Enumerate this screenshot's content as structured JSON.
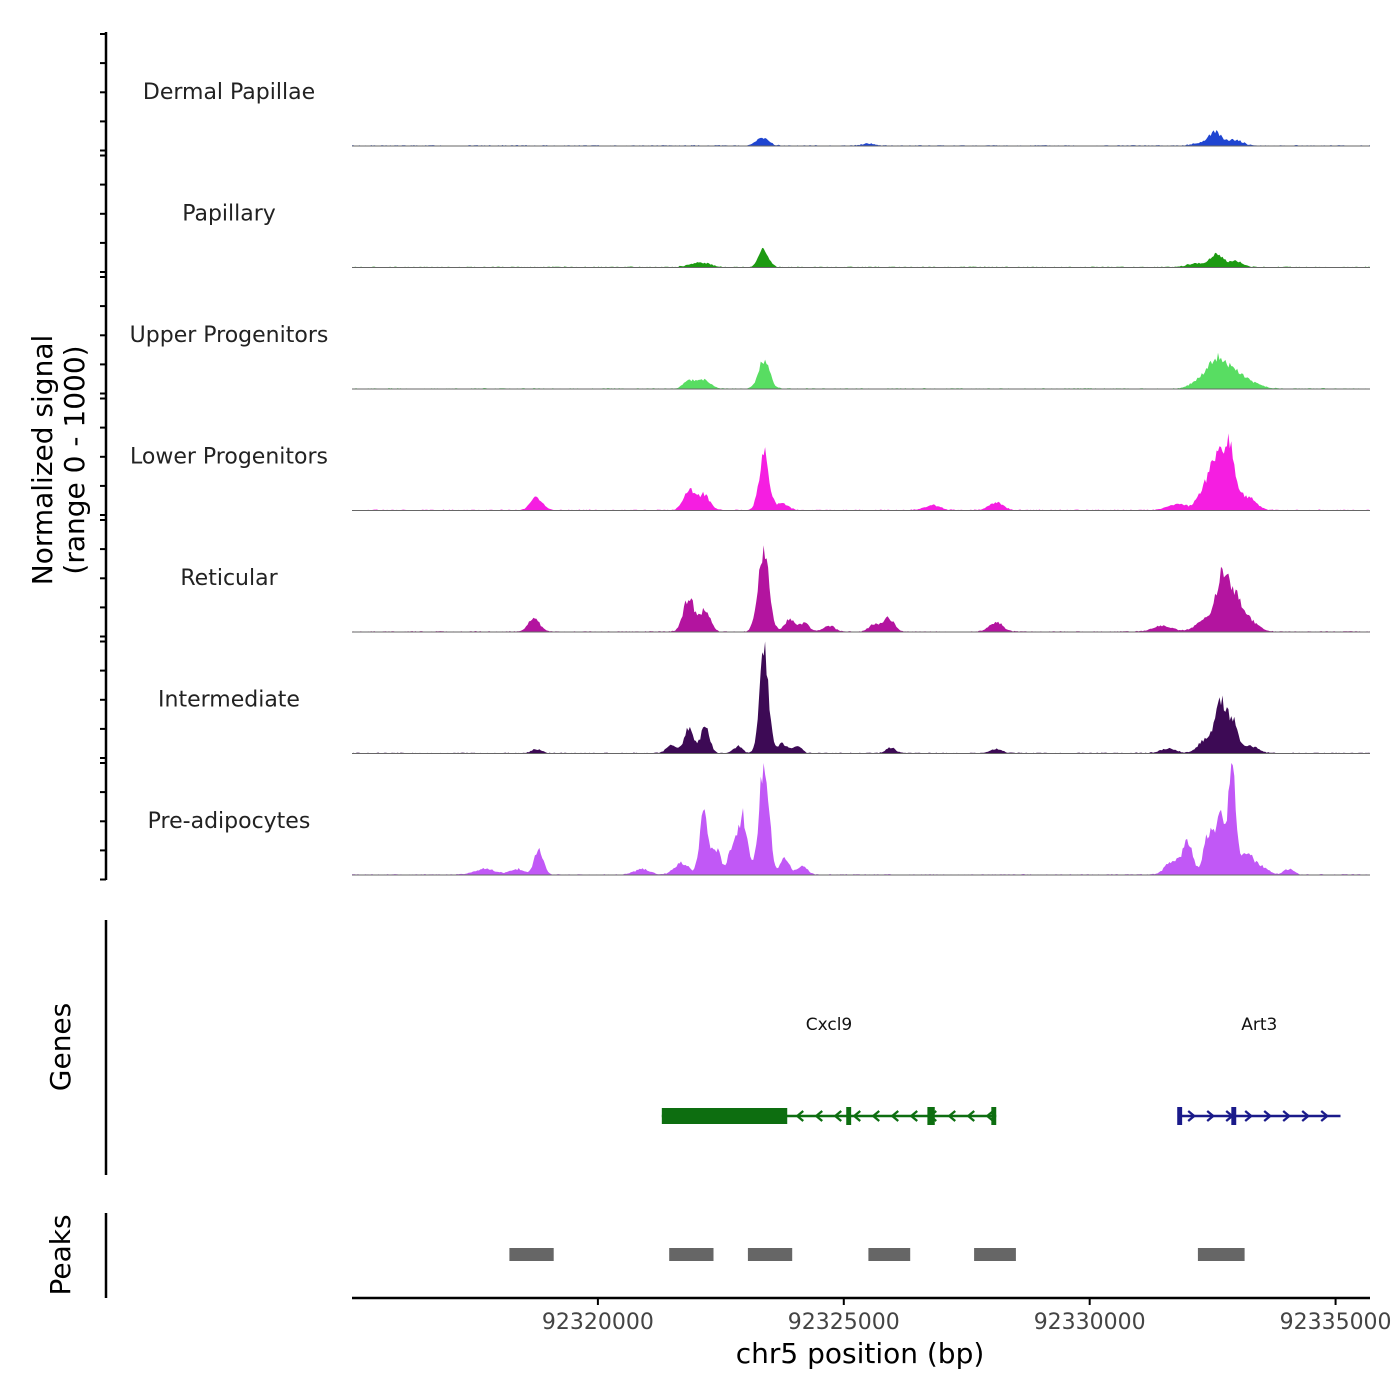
{
  "chart_data": {
    "type": "area",
    "title": "",
    "ylabel": [
      "Normalized signal",
      "(range 0 - 1000)"
    ],
    "xlabel": "chr5 position (bp)",
    "xlim": [
      92315000,
      92335700
    ],
    "ylim": [
      0,
      1000
    ],
    "x_ticks": [
      92320000,
      92325000,
      92330000,
      92335000
    ],
    "x_tick_labels": [
      "92320000",
      "92325000",
      "92330000",
      "92335000"
    ],
    "tracks": [
      {
        "name": "Dermal Papillae",
        "color": "#1f45d1",
        "peaks": [
          [
            92323350,
            70,
            120
          ],
          [
            92325500,
            18,
            120
          ],
          [
            92332550,
            120,
            120
          ],
          [
            92332950,
            55,
            150
          ],
          [
            92332250,
            25,
            150
          ]
        ]
      },
      {
        "name": "Papillary",
        "color": "#1d9a12",
        "peaks": [
          [
            92323370,
            160,
            100
          ],
          [
            92321950,
            28,
            150
          ],
          [
            92322200,
            25,
            150
          ],
          [
            92332580,
            110,
            120
          ],
          [
            92332950,
            55,
            150
          ],
          [
            92332200,
            35,
            200
          ]
        ]
      },
      {
        "name": "Upper Progenitors",
        "color": "#58dd62",
        "peaks": [
          [
            92323380,
            260,
            110
          ],
          [
            92321850,
            70,
            110
          ],
          [
            92322150,
            80,
            130
          ],
          [
            92332600,
            230,
            180
          ],
          [
            92332950,
            130,
            200
          ],
          [
            92332300,
            80,
            200
          ],
          [
            92333300,
            40,
            200
          ]
        ]
      },
      {
        "name": "Lower Progenitors",
        "color": "#f51ee1",
        "peaks": [
          [
            92323380,
            500,
            100
          ],
          [
            92318750,
            110,
            120
          ],
          [
            92321850,
            170,
            110
          ],
          [
            92322150,
            140,
            120
          ],
          [
            92323750,
            60,
            120
          ],
          [
            92326800,
            45,
            150
          ],
          [
            92328100,
            70,
            140
          ],
          [
            92332600,
            450,
            120
          ],
          [
            92332850,
            520,
            110
          ],
          [
            92332350,
            200,
            140
          ],
          [
            92333200,
            120,
            170
          ],
          [
            92331800,
            50,
            200
          ]
        ]
      },
      {
        "name": "Reticular",
        "color": "#b3149f",
        "peaks": [
          [
            92323370,
            700,
            110
          ],
          [
            92318700,
            110,
            120
          ],
          [
            92321850,
            300,
            110
          ],
          [
            92322180,
            200,
            100
          ],
          [
            92323900,
            110,
            100
          ],
          [
            92324200,
            80,
            100
          ],
          [
            92325900,
            120,
            120
          ],
          [
            92325600,
            60,
            100
          ],
          [
            92328100,
            80,
            140
          ],
          [
            92332700,
            500,
            140
          ],
          [
            92333000,
            260,
            140
          ],
          [
            92332300,
            100,
            160
          ],
          [
            92333300,
            80,
            150
          ],
          [
            92331500,
            50,
            200
          ],
          [
            92324700,
            50,
            120
          ]
        ]
      },
      {
        "name": "Intermediate",
        "color": "#3d0a55",
        "peaks": [
          [
            92323380,
            950,
            90
          ],
          [
            92321850,
            230,
            90
          ],
          [
            92322180,
            240,
            90
          ],
          [
            92322850,
            60,
            90
          ],
          [
            92323750,
            90,
            90
          ],
          [
            92324050,
            70,
            90
          ],
          [
            92321500,
            70,
            110
          ],
          [
            92325950,
            50,
            90
          ],
          [
            92328100,
            40,
            110
          ],
          [
            92332650,
            420,
            110
          ],
          [
            92332900,
            280,
            120
          ],
          [
            92332350,
            120,
            140
          ],
          [
            92333300,
            60,
            140
          ],
          [
            92331600,
            40,
            160
          ],
          [
            92318750,
            35,
            100
          ]
        ]
      },
      {
        "name": "Pre-adipocytes",
        "color": "#c158f6",
        "peaks": [
          [
            92323380,
            1000,
            100
          ],
          [
            92318800,
            230,
            90
          ],
          [
            92322150,
            560,
            80
          ],
          [
            92322400,
            230,
            100
          ],
          [
            92321700,
            100,
            150
          ],
          [
            92322950,
            500,
            90
          ],
          [
            92322750,
            270,
            90
          ],
          [
            92323800,
            150,
            90
          ],
          [
            92324150,
            80,
            100
          ],
          [
            92332900,
            900,
            80
          ],
          [
            92332650,
            580,
            100
          ],
          [
            92332400,
            340,
            90
          ],
          [
            92332000,
            280,
            100
          ],
          [
            92331700,
            130,
            150
          ],
          [
            92333200,
            200,
            100
          ],
          [
            92333450,
            80,
            150
          ],
          [
            92334050,
            50,
            100
          ],
          [
            92317700,
            50,
            200
          ],
          [
            92320900,
            50,
            150
          ],
          [
            92318350,
            50,
            150
          ]
        ]
      }
    ],
    "genes": [
      {
        "name": "Cxcl9",
        "strand": "-",
        "start": 92321300,
        "end": 92328100,
        "color": "#0d6e10",
        "thick": [
          [
            92321300,
            92323850
          ]
        ],
        "exons": [
          [
            92325050,
            92325150
          ],
          [
            92326700,
            92326850
          ],
          [
            92328000,
            92328100
          ]
        ]
      },
      {
        "name": "Art3",
        "strand": "+",
        "start": 92331800,
        "end": 92335100,
        "color": "#1a1a8a",
        "thick": [],
        "exons": [
          [
            92331780,
            92331880
          ],
          [
            92332880,
            92332980
          ]
        ]
      }
    ],
    "peak_regions": [
      [
        92318200,
        92319100
      ],
      [
        92321450,
        92322350
      ],
      [
        92323050,
        92323950
      ],
      [
        92325500,
        92326350
      ],
      [
        92327650,
        92328500
      ],
      [
        92332200,
        92333150
      ]
    ],
    "panels": [
      "Genes",
      "Peaks"
    ]
  }
}
